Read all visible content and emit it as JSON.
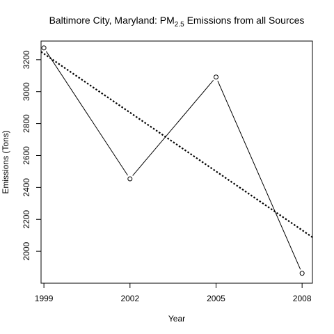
{
  "chart_data": {
    "type": "line",
    "title": {
      "prefix": "Baltimore City, Maryland: PM",
      "subscript": "2.5",
      "suffix": " Emissions from all Sources"
    },
    "xlabel": "Year",
    "ylabel": "Emissions (Tons)",
    "x": [
      1999,
      2002,
      2005,
      2008
    ],
    "x_ticks": [
      1999,
      2002,
      2005,
      2008
    ],
    "xlim": [
      1998.9,
      2008.36
    ],
    "y_ticks": [
      2000,
      2200,
      2400,
      2600,
      2800,
      3000,
      3200
    ],
    "ylim": [
      1800,
      3317
    ],
    "grid": false,
    "legend": "none",
    "series": [
      {
        "values": [
          3274.18,
          2453.92,
          3091.35,
          1862.28
        ],
        "style": "solid line with open circle markers",
        "color": "#000000"
      }
    ],
    "trendline": {
      "style": "dotted",
      "color": "#000000",
      "x": [
        1998.9,
        2008.36
      ],
      "y": [
        3250,
        2088
      ]
    }
  }
}
